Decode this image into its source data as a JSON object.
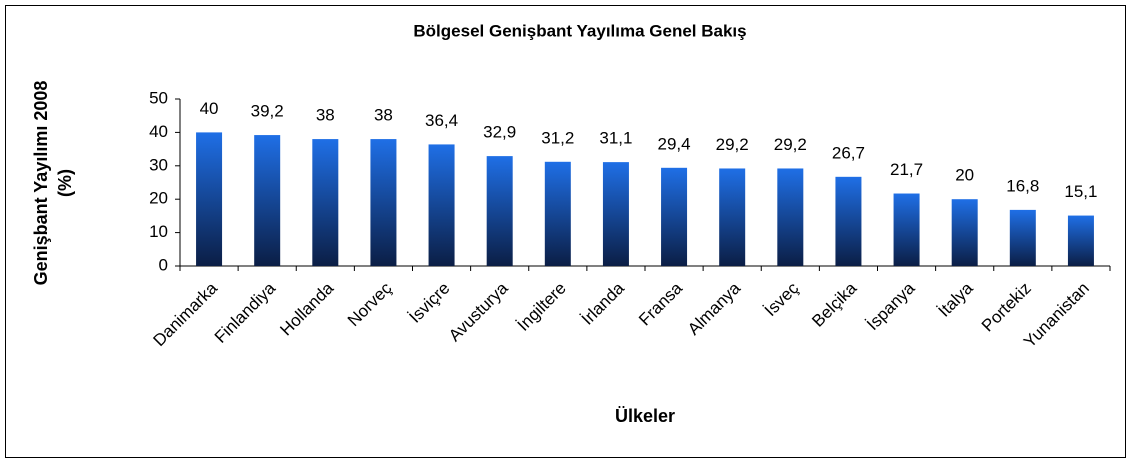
{
  "chart_data": {
    "type": "bar",
    "title": "Bölgesel Genişbant Yayılıma Genel Bakış",
    "x_label": "Ülkeler",
    "y_label": [
      "Genişbant Yayılımı 2008",
      "(%)"
    ],
    "categories": [
      "Danimarka",
      "Finlandiya",
      "Hollanda",
      "Norveç",
      "İsviçre",
      "Avusturya",
      "İngiltere",
      "İrlanda",
      "Fransa",
      "Almanya",
      "İsveç",
      "Belçika",
      "İspanya",
      "İtalya",
      "Portekiz",
      "Yunanistan"
    ],
    "values": [
      40,
      39.2,
      38,
      38,
      36.4,
      32.9,
      31.2,
      31.1,
      29.4,
      29.2,
      29.2,
      26.7,
      21.7,
      20,
      16.8,
      15.1
    ],
    "value_labels": [
      "40",
      "39,2",
      "38",
      "38",
      "36,4",
      "32,9",
      "31,2",
      "31,1",
      "29,4",
      "29,2",
      "29,2",
      "26,7",
      "21,7",
      "20",
      "16,8",
      "15,1"
    ],
    "color": "#1f6fe6",
    "ylim": [
      0,
      50
    ],
    "yticks": [
      0,
      10,
      20,
      30,
      40,
      50
    ],
    "grid": false
  }
}
